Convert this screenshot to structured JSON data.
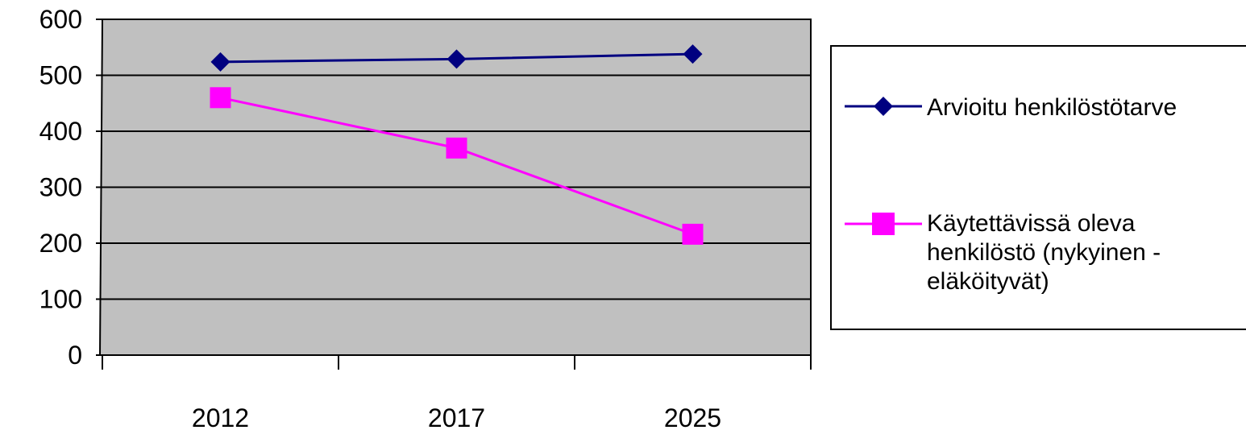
{
  "chart_data": {
    "type": "line",
    "categories": [
      "2012",
      "2017",
      "2025"
    ],
    "series": [
      {
        "name": "Arvioitu henkilöstötarve",
        "values": [
          524,
          529,
          538
        ],
        "color": "#000080",
        "marker": "diamond"
      },
      {
        "name": "Käytettävissä oleva henkilöstö (nykyinen - eläköityvät)",
        "values": [
          460,
          370,
          216
        ],
        "color": "#FF00FF",
        "marker": "square"
      }
    ],
    "ylim": [
      0,
      600
    ],
    "yticks": [
      "0",
      "100",
      "200",
      "300",
      "400",
      "500",
      "600"
    ],
    "grid": true,
    "plot_background": "#C0C0C0",
    "legend_position": "right",
    "title": "",
    "xlabel": "",
    "ylabel": ""
  }
}
